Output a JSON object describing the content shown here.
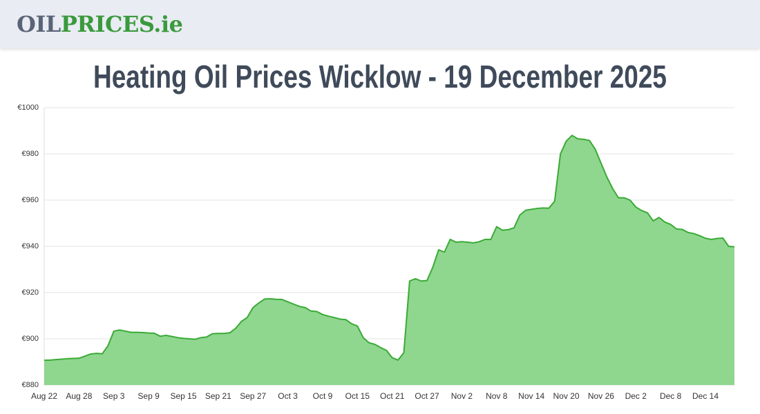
{
  "header": {
    "logo": [
      "OIL",
      "PRICES",
      ".ie"
    ]
  },
  "chart_data": {
    "type": "area",
    "title": "Heating Oil Prices Wicklow - 19 December 2025",
    "categories": [
      "Aug 22",
      null,
      null,
      null,
      null,
      null,
      "Aug 28",
      null,
      null,
      null,
      null,
      null,
      "Sep 3",
      null,
      null,
      null,
      null,
      null,
      "Sep 9",
      null,
      null,
      null,
      null,
      null,
      "Sep 15",
      null,
      null,
      null,
      null,
      null,
      "Sep 21",
      null,
      null,
      null,
      null,
      null,
      "Sep 27",
      null,
      null,
      null,
      null,
      null,
      "Oct 3",
      null,
      null,
      null,
      null,
      null,
      "Oct 9",
      null,
      null,
      null,
      null,
      null,
      "Oct 15",
      null,
      null,
      null,
      null,
      null,
      "Oct 21",
      null,
      null,
      null,
      null,
      null,
      "Oct 27",
      null,
      null,
      null,
      null,
      null,
      "Nov 2",
      null,
      null,
      null,
      null,
      null,
      "Nov 8",
      null,
      null,
      null,
      null,
      null,
      "Nov 14",
      null,
      null,
      null,
      null,
      null,
      "Nov 20",
      null,
      null,
      null,
      null,
      null,
      "Nov 26",
      null,
      null,
      null,
      null,
      null,
      "Dec 2",
      null,
      null,
      null,
      null,
      null,
      "Dec 8",
      null,
      null,
      null,
      null,
      null,
      "Dec 14",
      null,
      null,
      null,
      null,
      null
    ],
    "values": [
      890.7,
      890.8,
      891,
      891.2,
      891.4,
      891.5,
      891.6,
      892.5,
      893.4,
      893.7,
      893.5,
      897,
      903.3,
      903.8,
      903.3,
      902.8,
      902.8,
      902.7,
      902.5,
      902.4,
      901.1,
      901.5,
      901,
      900.5,
      900.2,
      900,
      899.8,
      900.5,
      900.8,
      902.2,
      902.3,
      902.3,
      902.6,
      904.5,
      907.5,
      909.2,
      913.5,
      915.5,
      917.2,
      917.3,
      917.1,
      917,
      916,
      915,
      914,
      913.5,
      912,
      911.8,
      910.5,
      909.8,
      909.2,
      908.5,
      908.3,
      906.5,
      905.5,
      900.5,
      898.3,
      897.6,
      896.2,
      895,
      891.8,
      890.8,
      894,
      925,
      926,
      925,
      925.2,
      931,
      938.5,
      937.5,
      943,
      941.8,
      942,
      941.8,
      941.5,
      942,
      943,
      943,
      948.5,
      947,
      947.2,
      948,
      953.5,
      955.6,
      956,
      956.4,
      956.6,
      956.5,
      959.5,
      980,
      985.5,
      988,
      986.5,
      986.3,
      985.8,
      982,
      976,
      970,
      965,
      961,
      961,
      960,
      957,
      955.5,
      954.5,
      951,
      952.5,
      950.5,
      949.5,
      947.5,
      947.3,
      946,
      945.5,
      944.6,
      943.5,
      943,
      943.4,
      943.6,
      940,
      939.8
    ],
    "color": "#3aaa35",
    "fill": "#8fd68f",
    "ylim": [
      880,
      1000
    ],
    "yticks": [
      {
        "value": 880,
        "label": "€880"
      },
      {
        "value": 900,
        "label": "€900"
      },
      {
        "value": 920,
        "label": "€920"
      },
      {
        "value": 940,
        "label": "€940"
      },
      {
        "value": 960,
        "label": "€960"
      },
      {
        "value": 980,
        "label": "€980"
      },
      {
        "value": 1000,
        "label": "€1000"
      }
    ],
    "grid": true
  }
}
